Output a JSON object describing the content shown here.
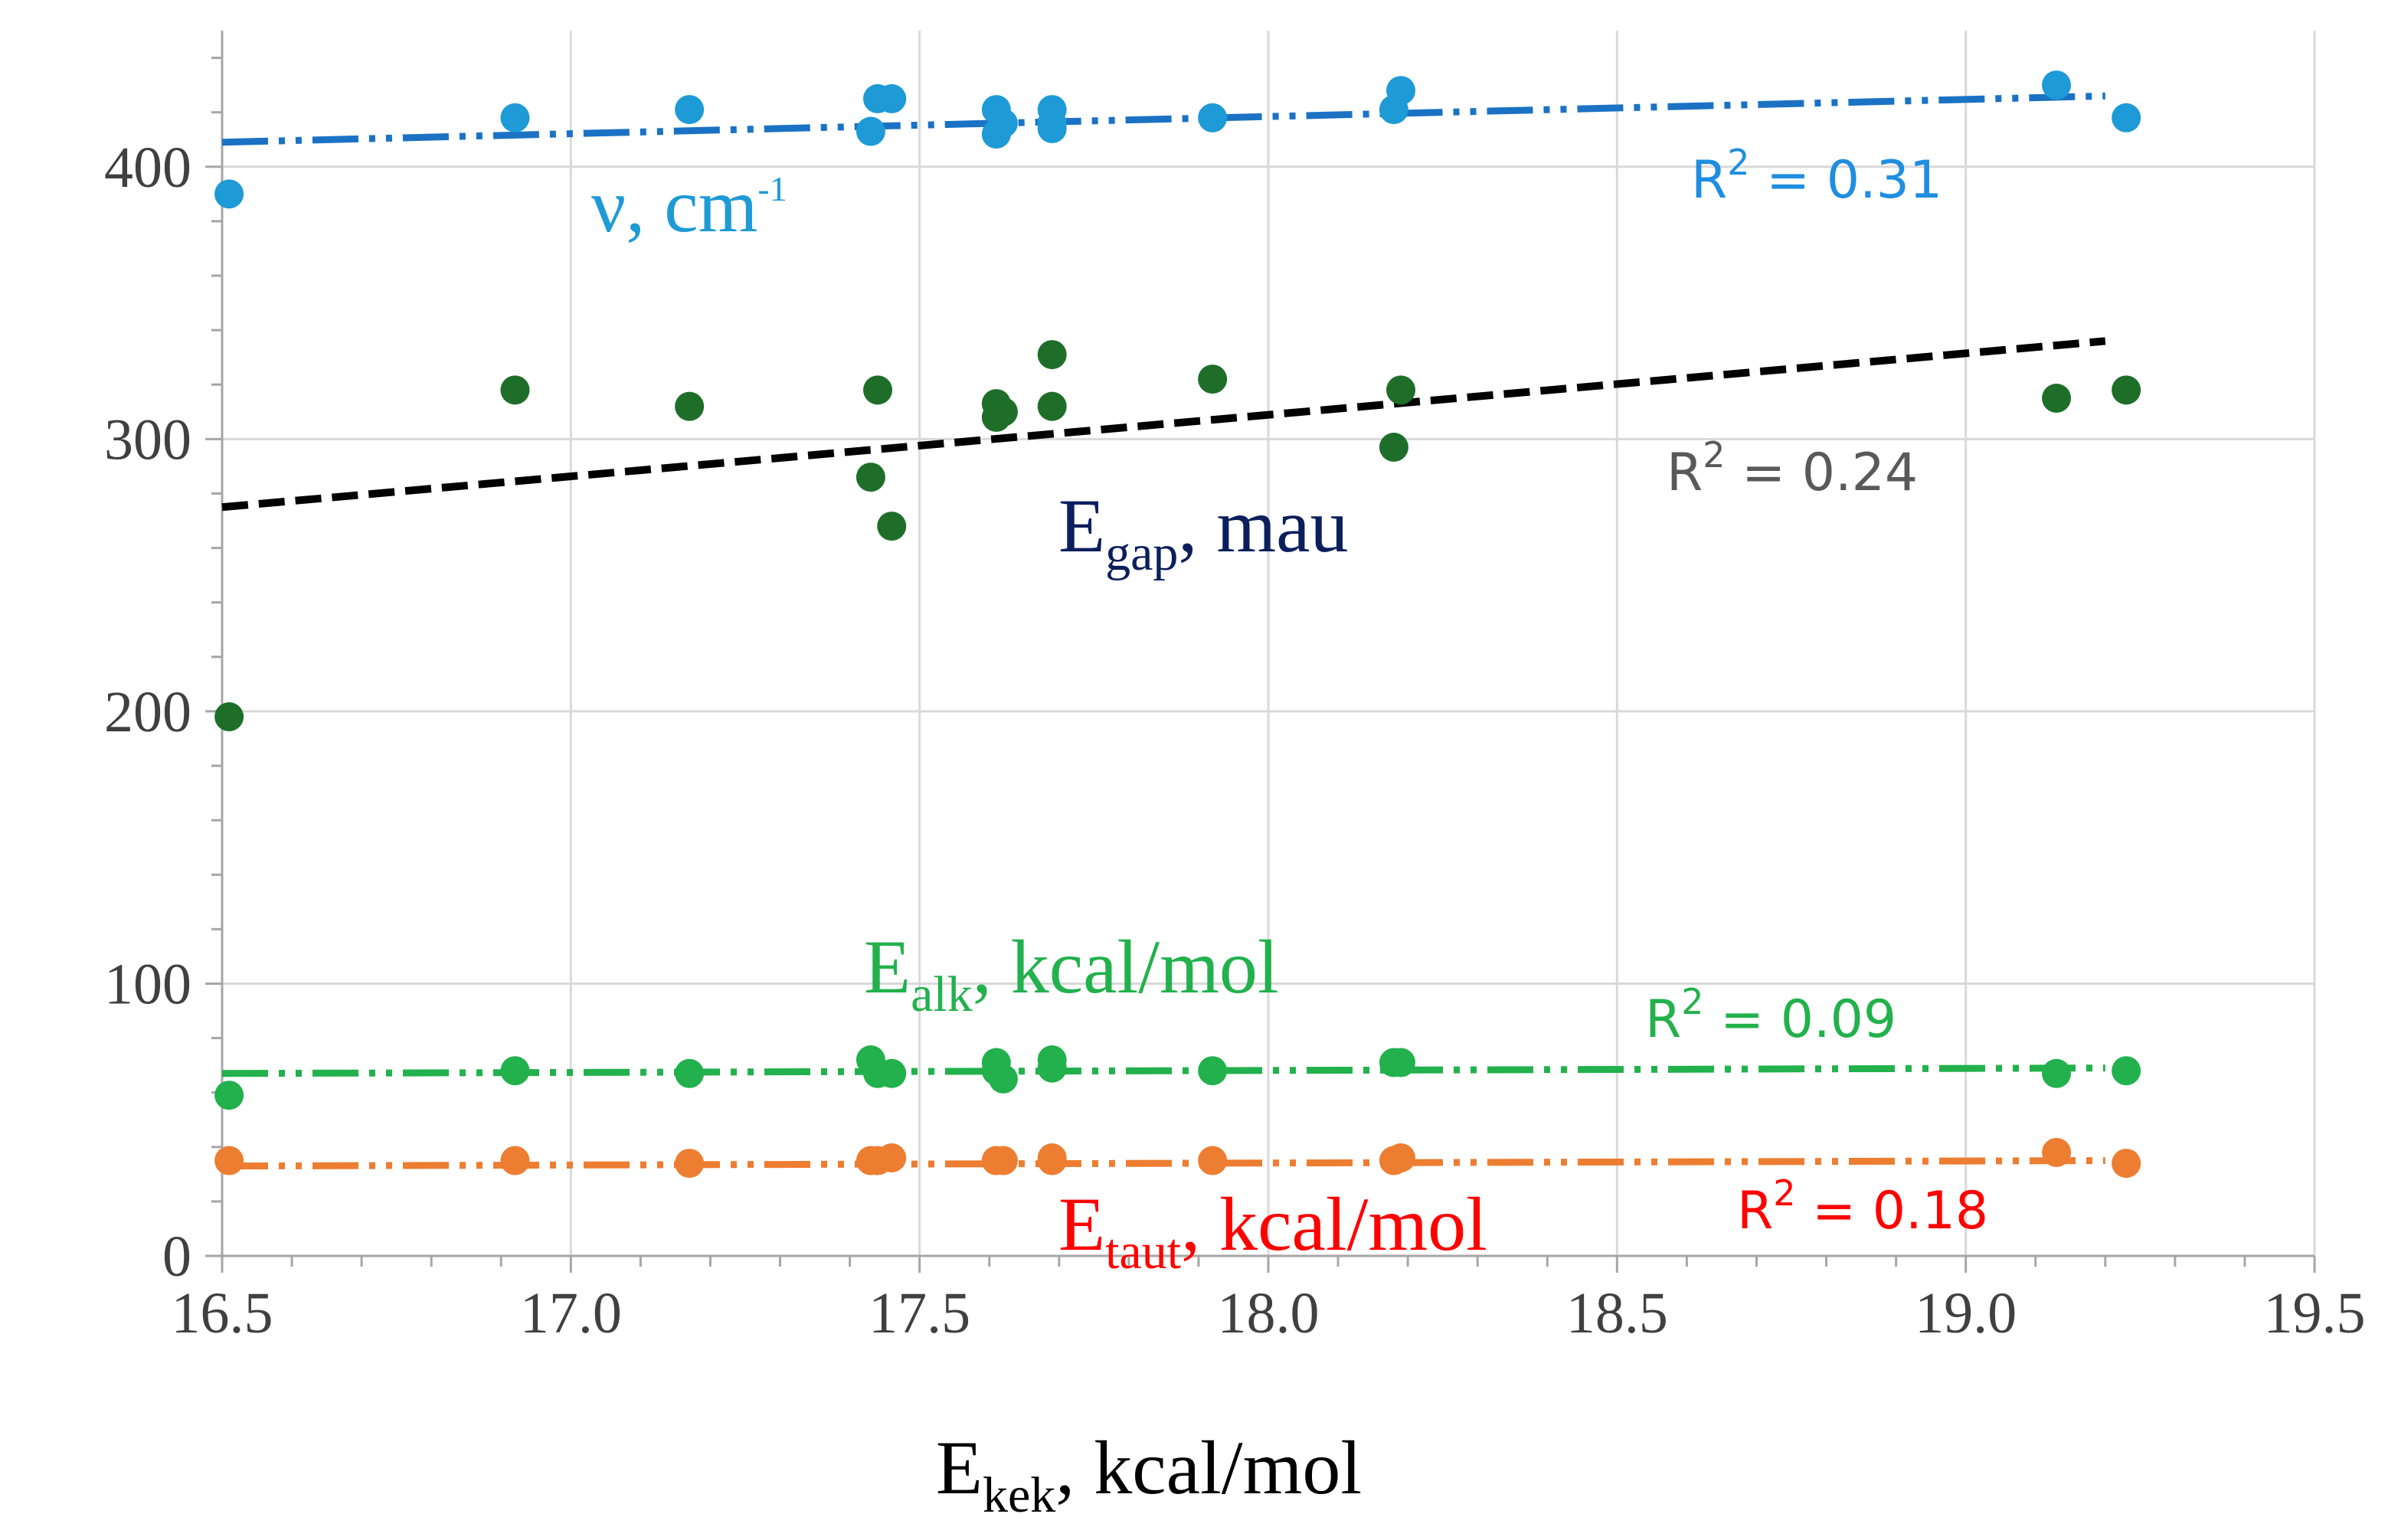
{
  "chart_data": {
    "type": "scatter",
    "title": "",
    "xlabel": {
      "main": "E",
      "sub": "kek",
      "rest": ", kcal/mol"
    },
    "ylabel": "",
    "xlim": [
      16.5,
      19.5
    ],
    "ylim": [
      0,
      450
    ],
    "grid": true,
    "x_ticks": [
      "16.5",
      "17.0",
      "17.5",
      "18.0",
      "18.5",
      "19.0",
      "19.5"
    ],
    "x_tick_values": [
      16.5,
      17.0,
      17.5,
      18.0,
      18.5,
      19.0,
      19.5
    ],
    "y_ticks": [
      "0",
      "100",
      "200",
      "300",
      "400"
    ],
    "y_tick_values": [
      0,
      100,
      200,
      300,
      400
    ],
    "x": [
      16.51,
      16.92,
      17.17,
      17.43,
      17.44,
      17.46,
      17.61,
      17.62,
      17.69,
      17.92,
      18.18,
      18.19,
      19.13,
      19.23
    ],
    "series": [
      {
        "key": "nu",
        "name": "ν, cm-1",
        "label": {
          "main": "ν, cm",
          "sup": "-1"
        },
        "color": "#1e9ad6",
        "values": [
          390,
          418,
          421,
          413,
          425,
          425,
          421,
          416,
          416,
          418,
          421,
          428,
          430,
          418
        ],
        "extra_points": [
          [
            17.61,
            412
          ],
          [
            17.69,
            421
          ],
          [
            17.69,
            414
          ]
        ],
        "trend": {
          "x0": 16.5,
          "y0": 409,
          "x1": 19.2,
          "y1": 426,
          "color": "#1b72c4",
          "style": "dash-dot"
        },
        "r2": "R",
        "r2_rest": " = 0.31",
        "r2_color": "#1f8ee0"
      },
      {
        "key": "gap",
        "name": "Egap, mau",
        "label": {
          "main": "E",
          "sub": "gap",
          "rest": ", mau"
        },
        "label_color": "#0b1f5c",
        "color": "#1e6e2a",
        "values": [
          198,
          318,
          312,
          286,
          318,
          268,
          313,
          310,
          331,
          322,
          297,
          318,
          315,
          318
        ],
        "extra_points": [
          [
            17.61,
            308
          ],
          [
            17.69,
            312
          ]
        ],
        "trend": {
          "x0": 16.5,
          "y0": 275,
          "x1": 19.2,
          "y1": 336,
          "color": "#000000",
          "style": "dashed"
        },
        "r2": "R",
        "r2_rest": " = 0.24",
        "r2_color": "#595959"
      },
      {
        "key": "alk",
        "name": "Ealk, kcal/mol",
        "label": {
          "main": "E",
          "sub": "alk",
          "rest": ", kcal/mol"
        },
        "color": "#22b14c",
        "values": [
          59,
          68,
          67,
          72,
          67,
          67,
          71,
          65,
          72,
          68,
          71,
          71,
          67,
          68
        ],
        "extra_points": [
          [
            17.61,
            68
          ],
          [
            17.69,
            69
          ]
        ],
        "trend": {
          "x0": 16.5,
          "y0": 67,
          "x1": 19.2,
          "y1": 69,
          "color": "#22b14c",
          "style": "dash-dot"
        },
        "r2": "R",
        "r2_rest": " = 0.09",
        "r2_color": "#22b14c"
      },
      {
        "key": "taut",
        "name": "Etaut, kcal/mol",
        "label": {
          "main": "E",
          "sub": "taut",
          "rest": ", kcal/mol"
        },
        "label_color": "#ff0000",
        "color": "#ed7d31",
        "values": [
          35,
          35,
          34,
          35,
          35,
          36,
          35,
          35,
          36,
          35,
          35,
          36,
          38,
          34
        ],
        "extra_points": [
          [
            17.61,
            35
          ],
          [
            17.69,
            35
          ]
        ],
        "trend": {
          "x0": 16.5,
          "y0": 33,
          "x1": 19.2,
          "y1": 35,
          "color": "#ed7d31",
          "style": "dash-dot"
        },
        "r2": "R",
        "r2_rest": " = 0.18",
        "r2_color": "#ff0000"
      }
    ]
  }
}
